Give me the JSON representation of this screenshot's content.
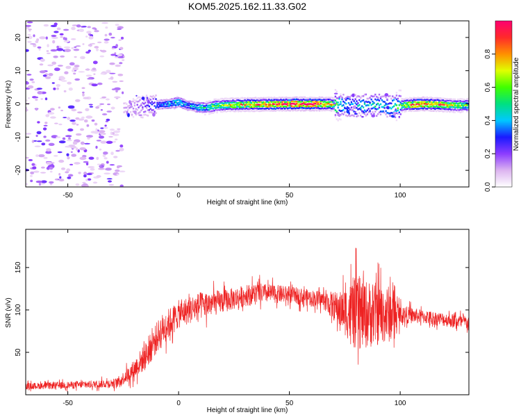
{
  "title": "KOM5.2025.162.11.33.G02",
  "chart_data": [
    {
      "type": "heatmap",
      "xlabel": "Height of straight line (km)",
      "ylabel": "Frequency (Hz)",
      "xlim": [
        -69,
        131
      ],
      "ylim": [
        -25,
        25
      ],
      "x_ticks": [
        "-50",
        "0",
        "50",
        "100"
      ],
      "y_ticks": [
        "20",
        "10",
        "0",
        "-10",
        "-20"
      ],
      "colorbar": {
        "label": "Normalized spectral amplitude",
        "range": [
          0,
          1
        ],
        "ticks": [
          "0.0",
          "0.2",
          "0.4",
          "0.6",
          "0.8"
        ],
        "colors": [
          "#ffffff",
          "#dcb4f0",
          "#8c3cff",
          "#1a1aff",
          "#00c8ff",
          "#00e080",
          "#40ff00",
          "#e0ff00",
          "#ff9000",
          "#ff2a2a",
          "#ff0070"
        ]
      },
      "ridge": [
        {
          "x": -24,
          "f": -1.5,
          "a": 0.1
        },
        {
          "x": -20,
          "f": -1.0,
          "a": 0.14
        },
        {
          "x": -15,
          "f": -0.5,
          "a": 0.2
        },
        {
          "x": -10,
          "f": -0.3,
          "a": 0.32
        },
        {
          "x": -5,
          "f": 0.0,
          "a": 0.4
        },
        {
          "x": 0,
          "f": 0.5,
          "a": 0.45
        },
        {
          "x": 3,
          "f": -0.3,
          "a": 0.38
        },
        {
          "x": 8,
          "f": -1.0,
          "a": 0.42
        },
        {
          "x": 12,
          "f": -1.2,
          "a": 0.5
        },
        {
          "x": 16,
          "f": -0.6,
          "a": 0.6
        },
        {
          "x": 22,
          "f": -0.3,
          "a": 0.68
        },
        {
          "x": 30,
          "f": -0.2,
          "a": 0.75
        },
        {
          "x": 40,
          "f": -0.1,
          "a": 0.85
        },
        {
          "x": 50,
          "f": 0.0,
          "a": 0.95
        },
        {
          "x": 60,
          "f": 0.0,
          "a": 0.92
        },
        {
          "x": 68,
          "f": 0.0,
          "a": 0.8
        },
        {
          "x": 73,
          "f": -0.5,
          "a": 0.45
        },
        {
          "x": 78,
          "f": -0.3,
          "a": 0.35
        },
        {
          "x": 82,
          "f": -0.6,
          "a": 0.4
        },
        {
          "x": 86,
          "f": -0.4,
          "a": 0.42
        },
        {
          "x": 90,
          "f": -0.2,
          "a": 0.45
        },
        {
          "x": 95,
          "f": -0.8,
          "a": 0.4
        },
        {
          "x": 100,
          "f": -0.5,
          "a": 0.55
        },
        {
          "x": 104,
          "f": -0.2,
          "a": 0.75
        },
        {
          "x": 110,
          "f": 0.0,
          "a": 0.9
        },
        {
          "x": 118,
          "f": -0.2,
          "a": 0.8
        },
        {
          "x": 125,
          "f": -0.5,
          "a": 0.6
        },
        {
          "x": 131,
          "f": -0.4,
          "a": 0.55
        }
      ],
      "noise_region": {
        "x": [
          -69,
          -25
        ],
        "f": [
          -25,
          25
        ],
        "a": [
          0.05,
          0.25
        ]
      }
    },
    {
      "type": "line",
      "xlabel": "Height of straight line (km)",
      "ylabel": "SNR (v/v)",
      "xlim": [
        -69,
        131
      ],
      "ylim": [
        0,
        195
      ],
      "x_ticks": [
        "-50",
        "0",
        "50",
        "100"
      ],
      "y_ticks": [
        "150",
        "100",
        "50"
      ],
      "color": "#ee2222",
      "envelope": [
        {
          "x": -69,
          "mean": 10,
          "spread": 7
        },
        {
          "x": -40,
          "mean": 12,
          "spread": 8
        },
        {
          "x": -28,
          "mean": 14,
          "spread": 10
        },
        {
          "x": -22,
          "mean": 25,
          "spread": 18
        },
        {
          "x": -15,
          "mean": 45,
          "spread": 30
        },
        {
          "x": -8,
          "mean": 75,
          "spread": 35
        },
        {
          "x": 0,
          "mean": 95,
          "spread": 30
        },
        {
          "x": 10,
          "mean": 105,
          "spread": 30
        },
        {
          "x": 20,
          "mean": 110,
          "spread": 25
        },
        {
          "x": 35,
          "mean": 120,
          "spread": 22
        },
        {
          "x": 50,
          "mean": 118,
          "spread": 18
        },
        {
          "x": 65,
          "mean": 112,
          "spread": 18
        },
        {
          "x": 73,
          "mean": 100,
          "spread": 40
        },
        {
          "x": 80,
          "mean": 95,
          "spread": 80
        },
        {
          "x": 88,
          "mean": 95,
          "spread": 70
        },
        {
          "x": 96,
          "mean": 95,
          "spread": 60
        },
        {
          "x": 100,
          "mean": 95,
          "spread": 20
        },
        {
          "x": 110,
          "mean": 92,
          "spread": 15
        },
        {
          "x": 131,
          "mean": 85,
          "spread": 15
        }
      ]
    }
  ]
}
